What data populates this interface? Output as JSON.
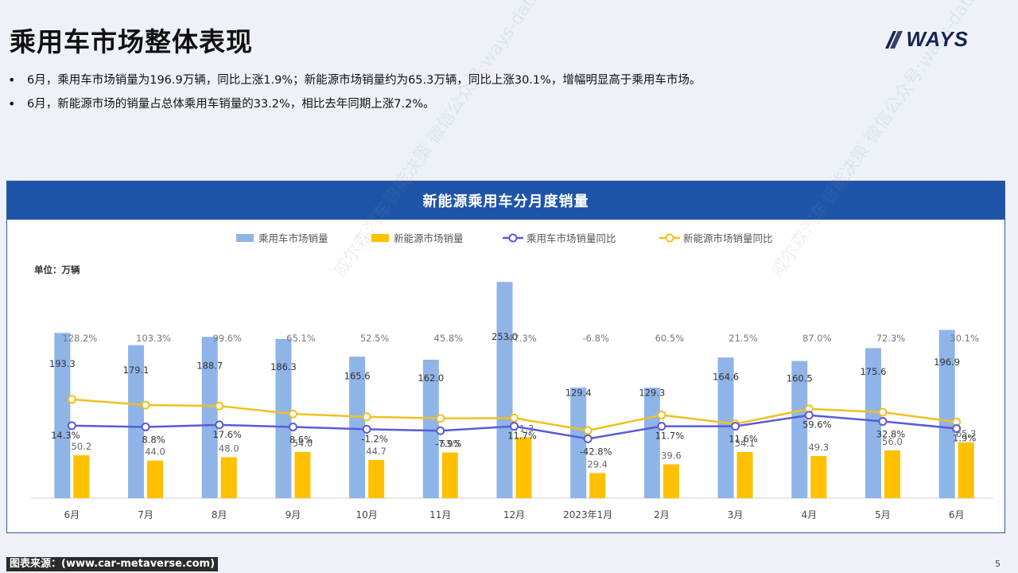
{
  "slide": {
    "title": "乘用车市场整体表现",
    "logo_text": "WAYS",
    "bullets": [
      "6月，乘用车市场销量为196.9万辆，同比上涨1.9%；新能源市场销量约为65.3万辆，同比上涨30.1%，增幅明显高于乘用车市场。",
      "6月，新能源市场的销量占总体乘用车销量的33.2%，相比去年同期上涨7.2%。"
    ],
    "footer_source": "图表来源：(www.car-metaverse.com)",
    "page_number": "5",
    "watermark": "威尔森汽车智能决策 微信公众号:ways-data"
  },
  "chart_data": {
    "type": "bar",
    "title": "新能源乘用车分月度销量",
    "unit_label": "单位：万辆",
    "categories": [
      "6月",
      "7月",
      "8月",
      "9月",
      "10月",
      "11月",
      "12月",
      "2023年1月",
      "2月",
      "3月",
      "4月",
      "5月",
      "6月"
    ],
    "series": [
      {
        "name": "乘用车市场销量",
        "kind": "bar",
        "color": "#8fb4e8",
        "values": [
          193.3,
          179.1,
          188.7,
          186.3,
          165.6,
          162.0,
          253.0,
          129.4,
          129.3,
          164.6,
          160.5,
          175.6,
          196.9
        ],
        "labels": [
          "193.3",
          "179.1",
          "188.7",
          "186.3",
          "165.6",
          "162.0",
          "253.0",
          "129.4",
          "129.3",
          "164.6",
          "160.5",
          "175.6",
          "196.9"
        ]
      },
      {
        "name": "新能源市场销量",
        "kind": "bar",
        "color": "#ffc000",
        "values": [
          50.2,
          44.0,
          48.0,
          54.0,
          44.7,
          53.5,
          71.3,
          29.4,
          39.6,
          54.1,
          49.3,
          56.0,
          65.3
        ],
        "labels": [
          "50.2",
          "44.0",
          "48.0",
          "54.0",
          "44.7",
          "53.5",
          "71.3",
          "29.4",
          "39.6",
          "54.1",
          "49.3",
          "56.0",
          "65.3"
        ]
      },
      {
        "name": "乘用车市场销量同比",
        "kind": "line",
        "color": "#5b5bd6",
        "values": [
          14.3,
          8.8,
          17.6,
          8.6,
          -1.2,
          -7.9,
          11.7,
          -42.8,
          11.7,
          11.6,
          59.6,
          32.8,
          1.9
        ],
        "labels": [
          "14.3%",
          "8.8%",
          "17.6%",
          "8.6%",
          "-1.2%",
          "-7.9%",
          "11.7%",
          "-42.8%",
          "11.7%",
          "11.6%",
          "59.6%",
          "32.8%",
          "1.9%"
        ]
      },
      {
        "name": "新能源市场销量同比",
        "kind": "line",
        "color": "#f0c020",
        "values": [
          128.2,
          103.3,
          99.6,
          65.1,
          52.5,
          45.8,
          47.3,
          -6.8,
          60.5,
          21.5,
          87.0,
          72.3,
          30.1
        ],
        "labels": [
          "128.2%",
          "103.3%",
          "99.6%",
          "65.1%",
          "52.5%",
          "45.8%",
          "47.3%",
          "-6.8%",
          "60.5%",
          "21.5%",
          "87.0%",
          "72.3%",
          "30.1%"
        ]
      }
    ],
    "bar_ylim": [
      0,
      270
    ],
    "line_ylim": [
      -300,
      700
    ],
    "legend_position": "top",
    "grid": false
  }
}
